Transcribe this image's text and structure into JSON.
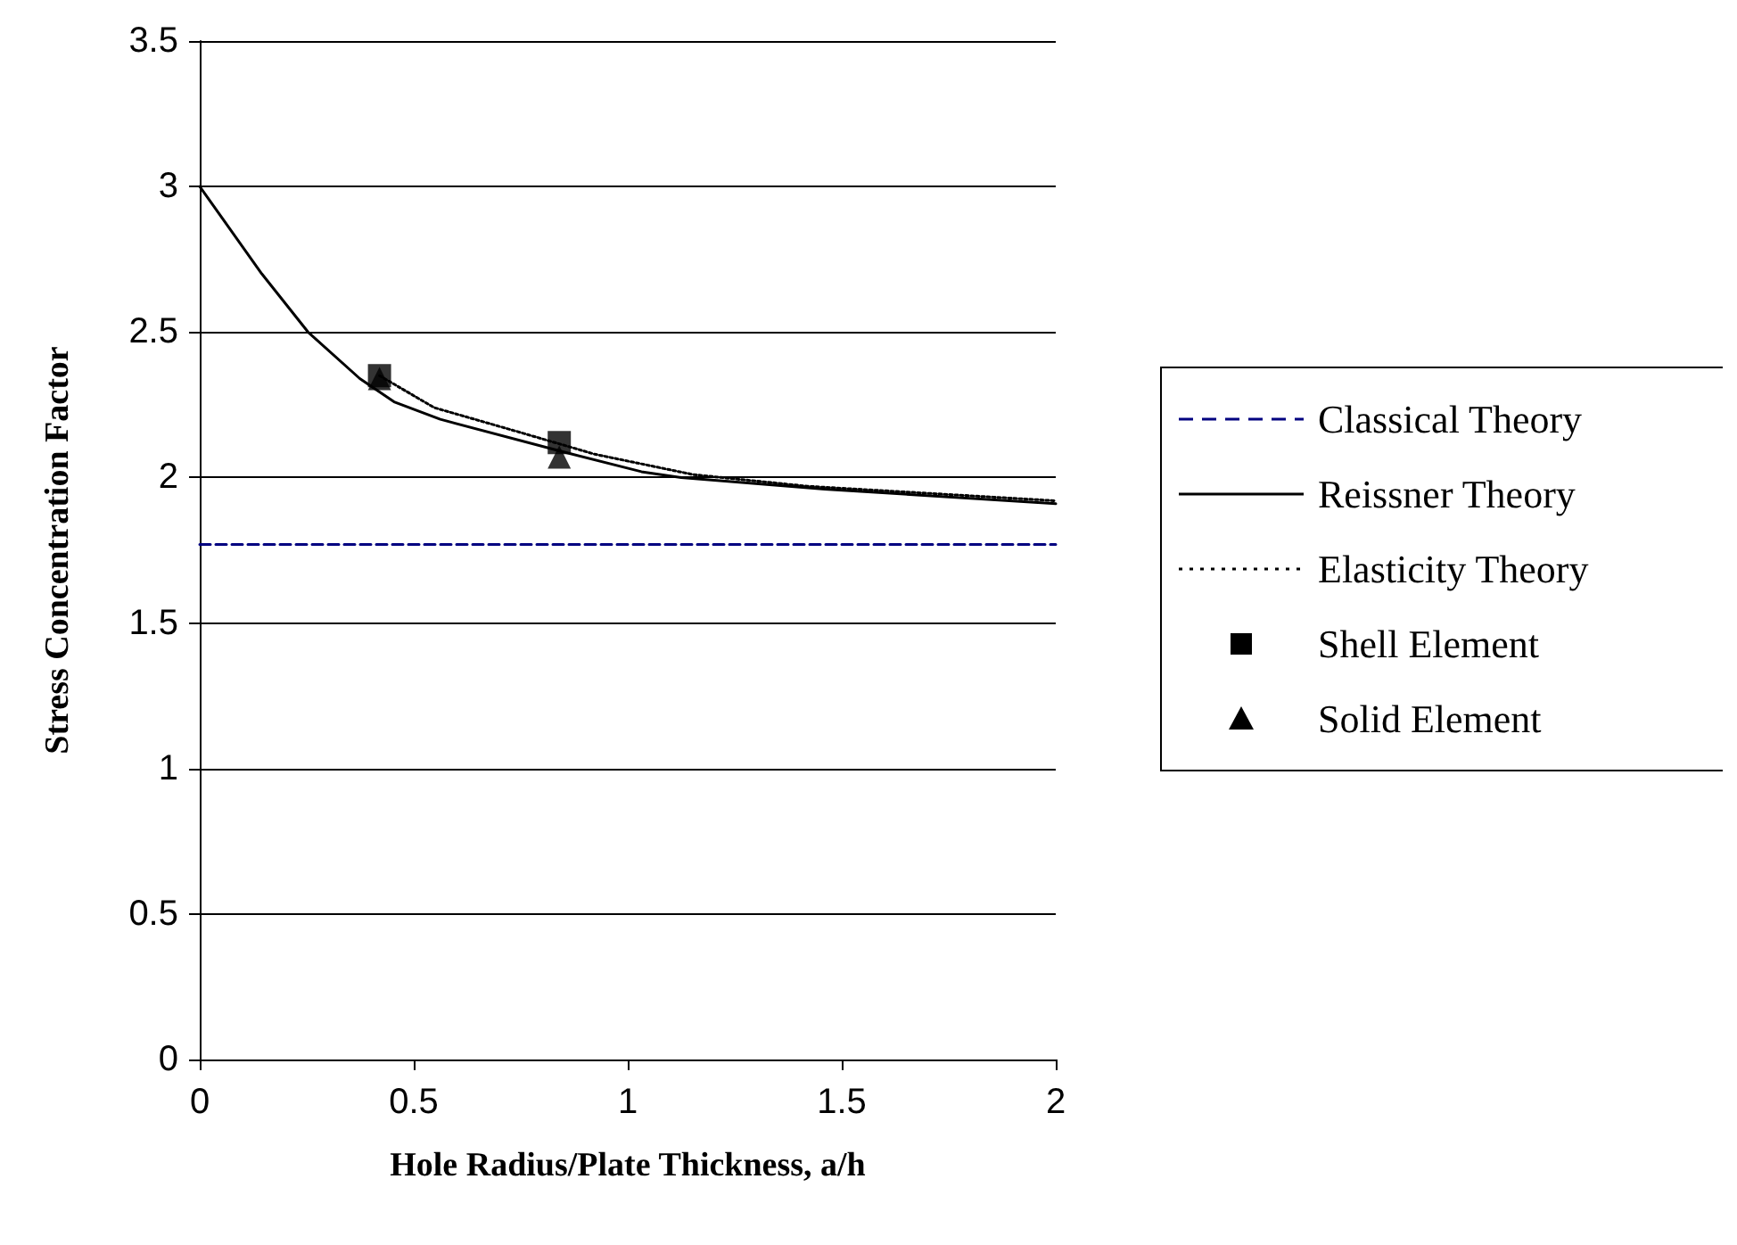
{
  "chart_data": {
    "type": "line",
    "xlabel": "Hole Radius/Plate Thickness, a/h",
    "ylabel": "Stress Concentration Factor",
    "xlim": [
      0,
      2
    ],
    "xticks": [
      0,
      0.5,
      1,
      1.5,
      2
    ],
    "ylim": [
      0,
      3.5
    ],
    "yticks": [
      0,
      0.5,
      1,
      1.5,
      2,
      2.5,
      3,
      3.5
    ],
    "grid": "y",
    "legend": "right",
    "series": [
      {
        "name": "Classical Theory",
        "color": "#000080",
        "line_style": "dashed",
        "marker": "none",
        "x": [
          0,
          2
        ],
        "values": [
          1.77,
          1.77
        ]
      },
      {
        "name": "Reissner Theory",
        "color": "#000000",
        "line_style": "solid",
        "marker": "none",
        "x": [
          0,
          0.145,
          0.253,
          0.374,
          0.454,
          0.562,
          0.844,
          1.032,
          1.125,
          1.46,
          2
        ],
        "values": [
          3,
          2.7,
          2.5,
          2.34,
          2.26,
          2.2,
          2.09,
          2.02,
          2.0,
          1.96,
          1.91
        ]
      },
      {
        "name": "Elasticity Theory",
        "color": "#000000",
        "line_style": "dotted",
        "marker": "none",
        "x": [
          0.42,
          0.548,
          0.737,
          0.923,
          1.153,
          1.42,
          2
        ],
        "values": [
          2.35,
          2.24,
          2.16,
          2.08,
          2.01,
          1.97,
          1.92
        ]
      },
      {
        "name": "Shell Element",
        "type": "scatter",
        "color": "#000000",
        "marker": "square",
        "x": [
          0.42,
          0.84
        ],
        "values": [
          2.35,
          2.12
        ]
      },
      {
        "name": "Solid Element",
        "type": "scatter",
        "color": "#000000",
        "marker": "triangle",
        "x": [
          0.42,
          0.84
        ],
        "values": [
          2.34,
          2.07
        ]
      }
    ]
  }
}
